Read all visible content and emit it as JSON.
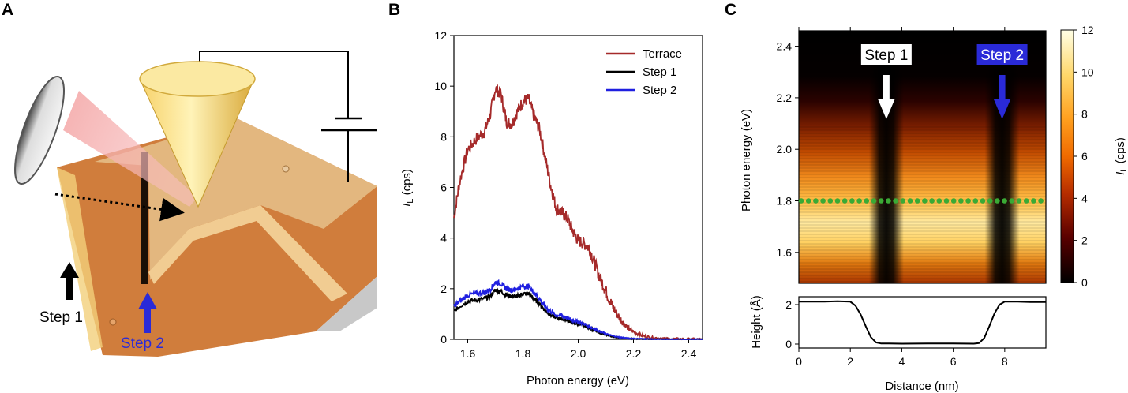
{
  "panels": {
    "a": {
      "letter": "A",
      "labels": {
        "step1": "Step 1",
        "step2": "Step 2"
      },
      "colors": {
        "step1": "#000000",
        "step2": "#2a2ad8"
      }
    },
    "b": {
      "letter": "B"
    },
    "c": {
      "letter": "C"
    }
  },
  "chart_data": [
    {
      "panel": "B",
      "type": "line",
      "xlabel": "Photon energy (eV)",
      "ylabel": "I_L (cps)",
      "ylabel_parts": {
        "symbol": "I",
        "subscript": "L",
        "unit": " (cps)"
      },
      "xlim": [
        1.55,
        2.45
      ],
      "ylim": [
        0,
        12
      ],
      "xticks": [
        "1.6",
        "1.8",
        "2.0",
        "2.2",
        "2.4"
      ],
      "yticks": [
        "0",
        "2",
        "4",
        "6",
        "8",
        "10",
        "12"
      ],
      "legend_position": "top-right",
      "x": [
        1.55,
        1.57,
        1.6,
        1.63,
        1.66,
        1.68,
        1.7,
        1.72,
        1.74,
        1.76,
        1.78,
        1.8,
        1.82,
        1.84,
        1.86,
        1.88,
        1.9,
        1.92,
        1.94,
        1.96,
        1.98,
        2.0,
        2.02,
        2.04,
        2.06,
        2.08,
        2.1,
        2.12,
        2.14,
        2.16,
        2.18,
        2.2,
        2.23,
        2.26,
        2.3,
        2.35,
        2.4,
        2.45
      ],
      "series": [
        {
          "name": "Terrace",
          "color": "#a52a2a",
          "values": [
            4.8,
            6.2,
            7.5,
            7.9,
            8.2,
            8.8,
            9.9,
            9.7,
            8.6,
            8.5,
            9.0,
            9.4,
            9.5,
            8.8,
            8.3,
            7.2,
            6.1,
            5.2,
            5.0,
            4.8,
            4.3,
            3.9,
            3.8,
            3.6,
            3.0,
            2.4,
            1.9,
            1.4,
            1.0,
            0.7,
            0.45,
            0.3,
            0.15,
            0.08,
            0.04,
            0.02,
            0.01,
            0.01
          ]
        },
        {
          "name": "Step 1",
          "color": "#000000",
          "values": [
            1.1,
            1.3,
            1.5,
            1.55,
            1.6,
            1.7,
            1.95,
            1.9,
            1.75,
            1.7,
            1.7,
            1.8,
            1.8,
            1.6,
            1.4,
            1.15,
            0.95,
            0.85,
            0.8,
            0.75,
            0.65,
            0.6,
            0.55,
            0.45,
            0.35,
            0.25,
            0.18,
            0.12,
            0.08,
            0.05,
            0.03,
            0.02,
            0.01,
            0.01,
            0.0,
            0.0,
            0.0,
            0.0
          ]
        },
        {
          "name": "Step 2",
          "color": "#1f1fe0",
          "values": [
            1.3,
            1.5,
            1.75,
            1.8,
            1.85,
            1.95,
            2.25,
            2.2,
            2.0,
            1.95,
            2.0,
            2.1,
            2.1,
            1.85,
            1.6,
            1.3,
            1.1,
            0.95,
            0.95,
            0.85,
            0.75,
            0.7,
            0.62,
            0.5,
            0.4,
            0.3,
            0.22,
            0.15,
            0.1,
            0.07,
            0.04,
            0.03,
            0.02,
            0.01,
            0.0,
            0.0,
            0.0,
            0.0
          ]
        }
      ]
    },
    {
      "panel": "C-map",
      "type": "heatmap",
      "xlim": [
        0,
        9.6
      ],
      "ylim": [
        1.48,
        2.46
      ],
      "ylabel": "Photon energy (eV)",
      "yticks": [
        "1.6",
        "1.8",
        "2.0",
        "2.2",
        "2.4"
      ],
      "colorbar": {
        "label_parts": {
          "symbol": "I",
          "subscript": "L",
          "unit": " (cps)"
        },
        "range": [
          0,
          12
        ],
        "ticks": [
          "0",
          "2",
          "4",
          "6",
          "8",
          "10",
          "12"
        ],
        "colormap": "afmhot"
      },
      "annotations": [
        {
          "text": "Step 1",
          "x_nm": 3.4,
          "color": "#000000",
          "box": "#ffffff",
          "arrow": "#ffffff"
        },
        {
          "text": "Step 2",
          "x_nm": 7.9,
          "color": "#ffffff",
          "box": "#2a2ad8",
          "arrow": "#2a2ad8"
        }
      ],
      "dotted_line": {
        "energy_eV": 1.8,
        "color": "#3aaa35"
      }
    },
    {
      "panel": "C-profile",
      "type": "line",
      "xlabel": "Distance (nm)",
      "ylabel": "Height (Å)",
      "xlim": [
        0,
        9.6
      ],
      "ylim": [
        -0.2,
        2.4
      ],
      "xticks": [
        "0",
        "2",
        "4",
        "6",
        "8"
      ],
      "yticks": [
        "0",
        "2"
      ],
      "x": [
        0,
        0.5,
        1,
        1.5,
        2,
        2.2,
        2.4,
        2.6,
        2.8,
        3.0,
        3.2,
        3.5,
        4,
        5,
        6,
        6.8,
        7.0,
        7.2,
        7.4,
        7.6,
        7.8,
        8.0,
        8.5,
        9,
        9.6
      ],
      "values": [
        2.15,
        2.15,
        2.15,
        2.17,
        2.15,
        1.95,
        1.5,
        0.9,
        0.35,
        0.08,
        0.03,
        0.03,
        0.02,
        0.03,
        0.03,
        0.02,
        0.05,
        0.3,
        0.9,
        1.55,
        2.0,
        2.15,
        2.15,
        2.13,
        2.13
      ]
    }
  ]
}
